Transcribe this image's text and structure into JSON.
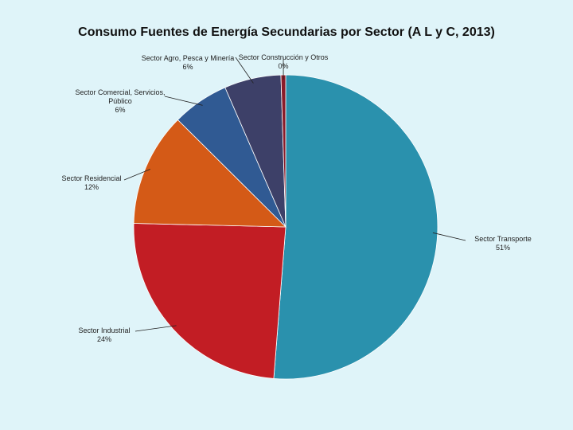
{
  "chart_data": {
    "type": "pie",
    "title": "Consumo Fuentes de Energía Secundarias por Sector (A L y C, 2013)",
    "slices": [
      {
        "name": "Sector Transporte",
        "label_lines": [
          "Sector Transporte"
        ],
        "value": 51,
        "value_label": "51%",
        "color": "#2a91ad"
      },
      {
        "name": "Sector Industrial",
        "label_lines": [
          "Sector Industrial"
        ],
        "value": 24,
        "value_label": "24%",
        "color": "#c21d24"
      },
      {
        "name": "Sector Residencial",
        "label_lines": [
          "Sector Residencial"
        ],
        "value": 12,
        "value_label": "12%",
        "color": "#d45a17"
      },
      {
        "name": "Sector Comercial, Servicios, Público",
        "label_lines": [
          "Sector Comercial, Servicios,",
          "Público"
        ],
        "value": 6,
        "value_label": "6%",
        "color": "#305a93"
      },
      {
        "name": "Sector Agro, Pesca y Minería",
        "label_lines": [
          "Sector Agro, Pesca y Minería"
        ],
        "value": 6,
        "value_label": "6%",
        "color": "#3d4068"
      },
      {
        "name": "Sector Construcción y Otros",
        "label_lines": [
          "Sector Construcción y Otros"
        ],
        "value": 0.5,
        "value_label": "0%",
        "color": "#8a1c2a"
      }
    ],
    "start_angle_deg": 0,
    "direction": "clockwise",
    "legend": "none",
    "data_labels": "outside-with-leader-lines"
  }
}
